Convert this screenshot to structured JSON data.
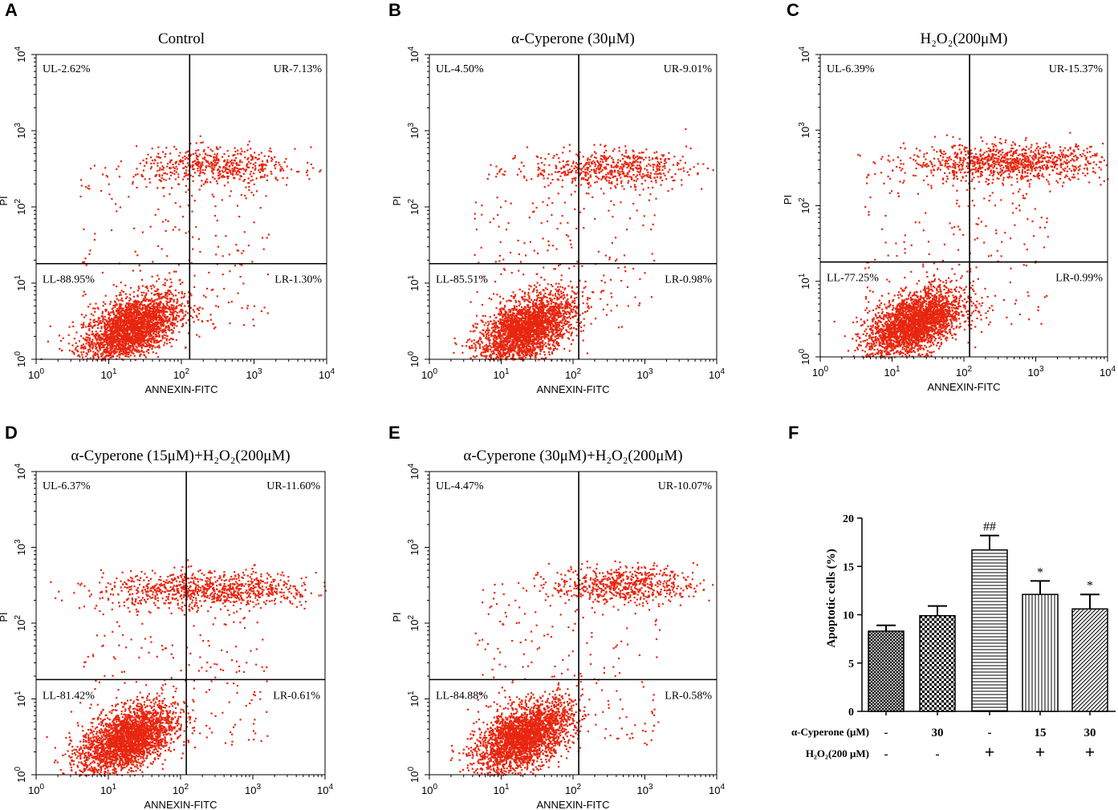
{
  "chart_data": [
    {
      "type": "scatter",
      "panel_letter": "A",
      "title": "Control",
      "xlabel": "ANNEXIN-FITC",
      "ylabel": "PI",
      "axis_scale": "log",
      "xlim": [
        1,
        10000
      ],
      "ylim": [
        1,
        10000
      ],
      "gate_x": 130,
      "gate_y": 18,
      "quadrants": {
        "UL": "UL-2.62%",
        "UR": "UR-7.13%",
        "LL": "LL-88.95%",
        "LR": "LR-1.30%"
      },
      "dot_color": "#e8260f",
      "population": {
        "main_x": 20,
        "main_y": 2.6,
        "upper_x": 300,
        "upper_y": 350,
        "upper_count": 520,
        "upper_spread_x": 0.55,
        "left_shift": 0
      }
    },
    {
      "type": "scatter",
      "panel_letter": "B",
      "title": "α-Cyperone (30μM)",
      "xlabel": "ANNEXIN-FITC",
      "ylabel": "PI",
      "axis_scale": "log",
      "xlim": [
        1,
        10000
      ],
      "ylim": [
        1,
        10000
      ],
      "gate_x": 120,
      "gate_y": 18,
      "quadrants": {
        "UL": "UL-4.50%",
        "UR": "UR-9.01%",
        "LL": "LL-85.51%",
        "LR": "LR-0.98%"
      },
      "dot_color": "#e8260f",
      "population": {
        "main_x": 22,
        "main_y": 2.5,
        "upper_x": 320,
        "upper_y": 330,
        "upper_count": 560,
        "upper_spread_x": 0.55,
        "left_shift": 0
      }
    },
    {
      "type": "scatter",
      "panel_letter": "C",
      "title": "H₂O₂(200μM)",
      "xlabel": "ANNEXIN-FITC",
      "ylabel": "PI",
      "axis_scale": "log",
      "xlim": [
        1,
        10000
      ],
      "ylim": [
        1,
        10000
      ],
      "gate_x": 120,
      "gate_y": 18,
      "quadrants": {
        "UL": "UL-6.39%",
        "UR": "UR-15.37%",
        "LL": "LL-77.25%",
        "LR": "LR-0.99%"
      },
      "dot_color": "#e8260f",
      "population": {
        "main_x": 20,
        "main_y": 2.8,
        "upper_x": 420,
        "upper_y": 380,
        "upper_count": 1000,
        "upper_spread_x": 0.7,
        "left_shift": 0
      }
    },
    {
      "type": "scatter",
      "panel_letter": "D",
      "title": "α-Cyperone (15μM)+H₂O₂(200μM)",
      "xlabel": "ANNEXIN-FITC",
      "ylabel": "PI",
      "axis_scale": "log",
      "xlim": [
        1,
        10000
      ],
      "ylim": [
        1,
        10000
      ],
      "gate_x": 120,
      "gate_y": 18,
      "quadrants": {
        "UL": "UL-6.37%",
        "UR": "UR-11.60%",
        "LL": "LL-81.42%",
        "LR": "LR-0.61%"
      },
      "dot_color": "#e8260f",
      "population": {
        "main_x": 18,
        "main_y": 3.0,
        "upper_x": 250,
        "upper_y": 280,
        "upper_count": 900,
        "upper_spread_x": 0.75,
        "left_shift": 0
      }
    },
    {
      "type": "scatter",
      "panel_letter": "E",
      "title": "α-Cyperone (30μM)+H₂O₂(200μM)",
      "xlabel": "ANNEXIN-FITC",
      "ylabel": "PI",
      "axis_scale": "log",
      "xlim": [
        1,
        10000
      ],
      "ylim": [
        1,
        10000
      ],
      "gate_x": 120,
      "gate_y": 18,
      "quadrants": {
        "UL": "UL-4.47%",
        "UR": "UR-10.07%",
        "LL": "LL-84.88%",
        "LR": "LR-0.58%"
      },
      "dot_color": "#e8260f",
      "population": {
        "main_x": 20,
        "main_y": 3.2,
        "upper_x": 500,
        "upper_y": 330,
        "upper_count": 620,
        "upper_spread_x": 0.5,
        "left_shift": 0
      }
    },
    {
      "type": "bar",
      "panel_letter": "F",
      "title": "",
      "ylabel": "Apoptotic cells (%)",
      "ylim": [
        0,
        20
      ],
      "yticks": [
        "0",
        "5",
        "10",
        "15",
        "20"
      ],
      "values": [
        8.3,
        9.9,
        16.7,
        12.1,
        10.6
      ],
      "errors": [
        0.6,
        1.0,
        1.5,
        1.4,
        1.5
      ],
      "significance": [
        "",
        "",
        "##",
        "*",
        "*"
      ],
      "patterns": [
        "crosshatch-fine",
        "checker",
        "horizontal",
        "vertical",
        "diagonal"
      ],
      "table_rows": [
        {
          "label": "α-Cyperone (μM)",
          "cells": [
            "-",
            "30",
            "-",
            "15",
            "30"
          ]
        },
        {
          "label": "H₂O₂(200 μM)",
          "cells": [
            "-",
            "-",
            "+",
            "+",
            "+"
          ]
        }
      ]
    }
  ]
}
